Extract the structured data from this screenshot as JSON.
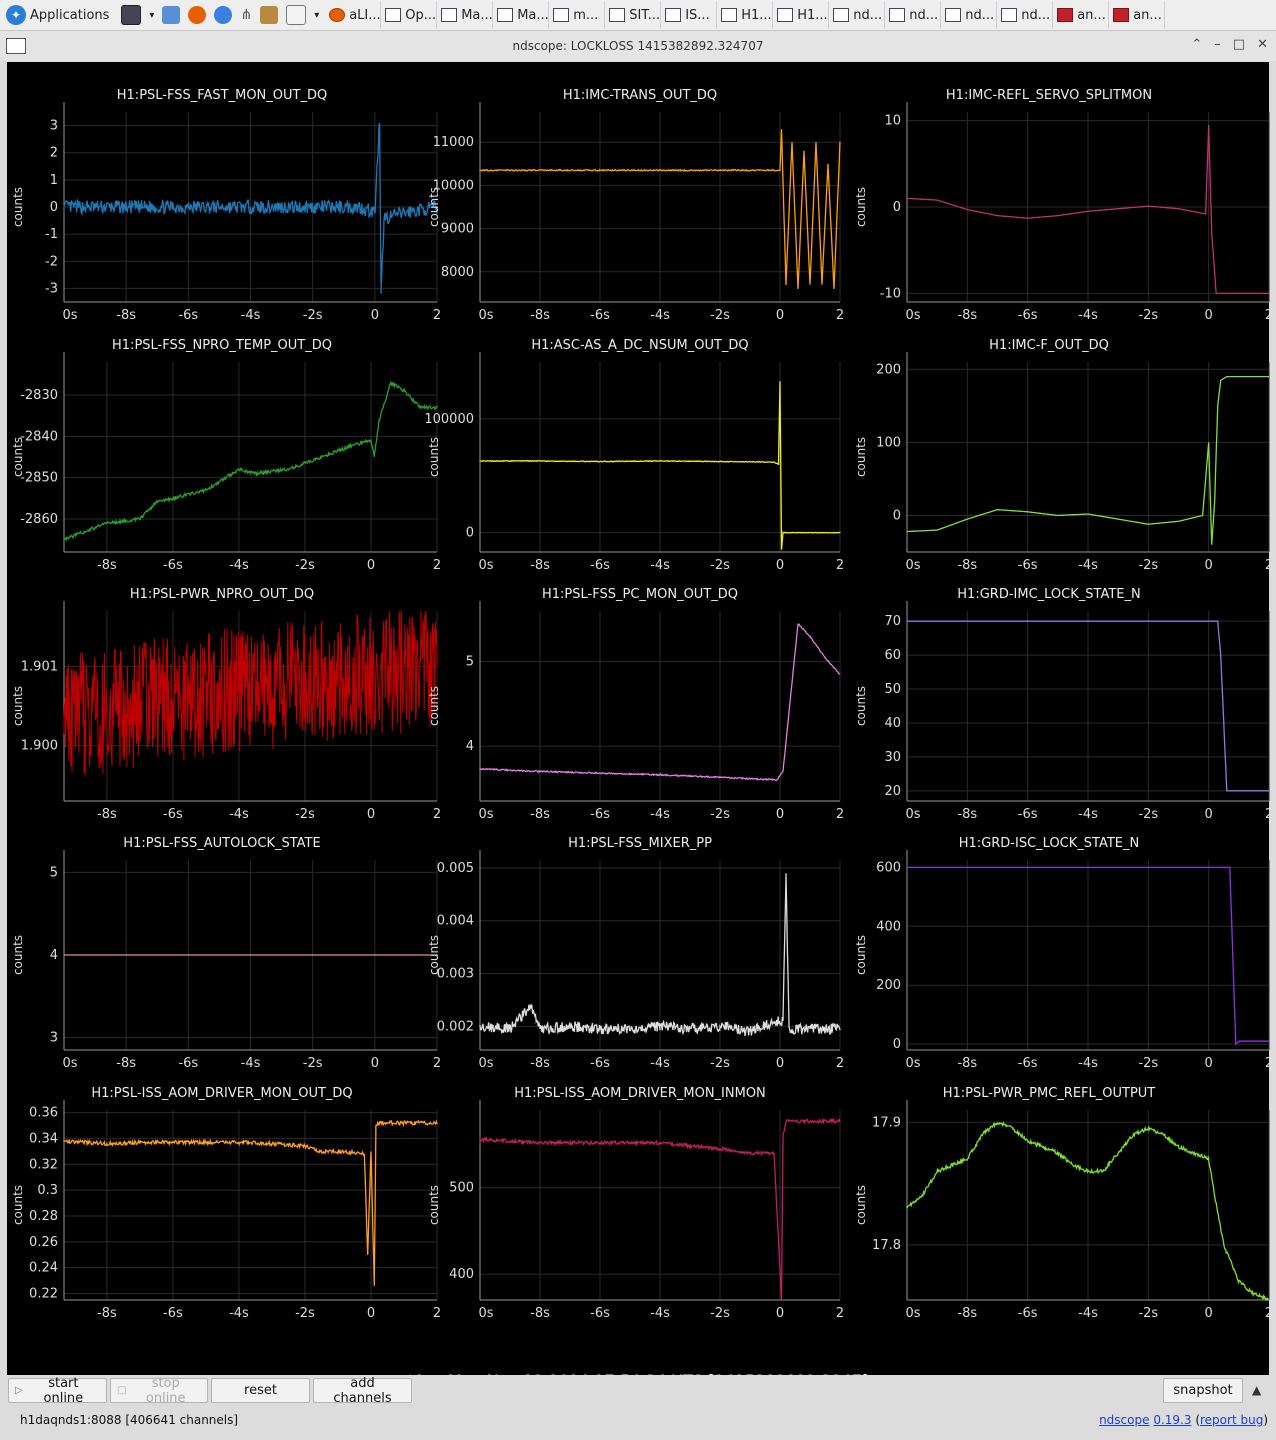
{
  "taskbar": {
    "apps_label": "Applications",
    "tasks": [
      {
        "label": "aLI...",
        "icon": "firefox-icon"
      },
      {
        "label": "Op...",
        "icon": "editor-icon"
      },
      {
        "label": "Ma...",
        "icon": "window-icon"
      },
      {
        "label": "Ma...",
        "icon": "window-icon"
      },
      {
        "label": "m...",
        "icon": "window-icon"
      },
      {
        "label": "SIT...",
        "icon": "monitor-icon"
      },
      {
        "label": "IS...",
        "icon": "monitor-icon"
      },
      {
        "label": "H1...",
        "icon": "monitor-icon"
      },
      {
        "label": "H1...",
        "icon": "monitor-icon"
      },
      {
        "label": "nd...",
        "icon": "window-icon"
      },
      {
        "label": "nd...",
        "icon": "window-icon"
      },
      {
        "label": "nd...",
        "icon": "window-icon"
      },
      {
        "label": "nd...",
        "icon": "window-icon"
      },
      {
        "label": "an...",
        "icon": "terminal-icon"
      },
      {
        "label": "an...",
        "icon": "terminal-icon"
      }
    ]
  },
  "window": {
    "title": "ndscope: LOCKLOSS 1415382892.324707"
  },
  "t0_label": "t0 = Mon Nov 11 2024 17:54:34 UTC [1415382892.3247]",
  "buttons": {
    "start_online": "start online",
    "stop_online": "stop online",
    "reset": "reset",
    "add_channels": "add channels",
    "snapshot": "snapshot"
  },
  "status": {
    "server": "h1daqnds1:8088  [406641 channels]",
    "app_name": "ndscope",
    "version": "0.19.3",
    "report_bug": "report bug"
  },
  "chart_data": [
    {
      "type": "line",
      "title": "H1:PSL-FSS_FAST_MON_OUT_DQ",
      "ylabel": "counts",
      "color": "#1f77b4",
      "xlim": [
        -10,
        2
      ],
      "ylim": [
        -3.5,
        3.5
      ],
      "yticks": [
        3,
        2,
        1,
        0,
        -1,
        -2,
        -3
      ],
      "xticks": [
        "0s",
        "-8s",
        "-6s",
        "-4s",
        "-2s",
        "0",
        "2"
      ],
      "x": [
        -10,
        -8,
        -6,
        -4,
        -2,
        -0.5,
        0,
        0.15,
        0.2,
        0.3,
        1,
        2
      ],
      "y": [
        0,
        0,
        0,
        0,
        0,
        0,
        -0.2,
        3.1,
        -3.2,
        -0.4,
        -0.2,
        0
      ],
      "noise": 0.25
    },
    {
      "type": "line",
      "title": "H1:IMC-TRANS_OUT_DQ",
      "ylabel": "counts",
      "color": "#ff9f10",
      "xlim": [
        -10,
        2
      ],
      "ylim": [
        7300,
        11700
      ],
      "yticks": [
        11000,
        10000,
        9000,
        8000
      ],
      "xticks": [
        "0s",
        "-8s",
        "-6s",
        "-4s",
        "-2s",
        "0",
        "2"
      ],
      "x": [
        -10,
        -6,
        -2,
        0,
        0.05,
        0.2,
        0.4,
        0.6,
        0.8,
        1.0,
        1.2,
        1.4,
        1.6,
        1.8,
        2
      ],
      "y": [
        10350,
        10350,
        10350,
        10350,
        11300,
        7700,
        11000,
        7600,
        10800,
        7700,
        11000,
        7700,
        10500,
        7600,
        11000
      ],
      "noise": 15
    },
    {
      "type": "line",
      "title": "H1:IMC-REFL_SERVO_SPLITMON",
      "ylabel": "counts",
      "color": "#c0306a",
      "xlim": [
        -10,
        2
      ],
      "ylim": [
        -11,
        11
      ],
      "yticks": [
        10,
        0,
        -10
      ],
      "xticks": [
        "0s",
        "-8s",
        "-6s",
        "-4s",
        "-2s",
        "0",
        "2"
      ],
      "x": [
        -10,
        -9,
        -8,
        -7,
        -6,
        -5,
        -4,
        -3,
        -2,
        -1,
        -0.1,
        0,
        0.1,
        0.25,
        0.3,
        2
      ],
      "y": [
        1,
        0.8,
        -0.3,
        -1,
        -1.3,
        -1,
        -0.5,
        -0.2,
        0.1,
        -0.2,
        -0.8,
        9.5,
        -3,
        -10,
        -10,
        -10
      ],
      "noise": 0
    },
    {
      "type": "line",
      "title": "H1:PSL-FSS_NPRO_TEMP_OUT_DQ",
      "ylabel": "counts",
      "color": "#2ca02c",
      "xlim": [
        -9.3,
        2
      ],
      "ylim": [
        -2868,
        -2822
      ],
      "yticks": [
        -2830,
        -2840,
        -2850,
        -2860
      ],
      "xticks": [
        "-8s",
        "-6s",
        "-4s",
        "-2s",
        "0",
        "2"
      ],
      "x": [
        -9.3,
        -8,
        -7,
        -6.5,
        -5,
        -4,
        -3.5,
        -2.5,
        -1.5,
        -0.5,
        0,
        0.1,
        0.25,
        0.6,
        1,
        1.5,
        2
      ],
      "y": [
        -2865,
        -2861,
        -2860,
        -2856,
        -2853,
        -2848,
        -2849,
        -2848,
        -2845,
        -2842,
        -2841,
        -2845,
        -2836,
        -2827,
        -2829,
        -2833,
        -2833
      ],
      "noise": 0.4
    },
    {
      "type": "line",
      "title": "H1:ASC-AS_A_DC_NSUM_OUT_DQ",
      "ylabel": "counts",
      "color": "#eeee20",
      "xlim": [
        -10,
        2
      ],
      "ylim": [
        -17000,
        150000
      ],
      "yticks": [
        100000,
        0
      ],
      "xticks": [
        "0s",
        "-8s",
        "-6s",
        "-4s",
        "-2s",
        "0",
        "2"
      ],
      "x": [
        -10,
        -8,
        -6,
        -4,
        -2,
        -0.2,
        -0.05,
        0,
        0.05,
        0.1,
        0.15,
        2
      ],
      "y": [
        63000,
        63000,
        62500,
        63000,
        62500,
        62000,
        60000,
        133000,
        -15000,
        0,
        0,
        0
      ],
      "noise": 300
    },
    {
      "type": "line",
      "title": "H1:IMC-F_OUT_DQ",
      "ylabel": "counts",
      "color": "#80e040",
      "xlim": [
        -10,
        2
      ],
      "ylim": [
        -50,
        210
      ],
      "yticks": [
        200,
        100,
        0
      ],
      "xticks": [
        "0s",
        "-8s",
        "-6s",
        "-4s",
        "-2s",
        "0",
        "2"
      ],
      "x": [
        -10,
        -9,
        -8,
        -7,
        -6,
        -5,
        -4,
        -3,
        -2,
        -1,
        -0.2,
        0,
        0.1,
        0.2,
        0.3,
        0.4,
        0.6,
        0.8,
        1.2,
        2
      ],
      "y": [
        -22,
        -20,
        -5,
        8,
        5,
        0,
        2,
        -5,
        -12,
        -8,
        0,
        100,
        -40,
        20,
        150,
        185,
        190,
        190,
        190,
        190
      ],
      "noise": 0
    },
    {
      "type": "line",
      "title": "H1:PSL-PWR_NPRO_OUT_DQ",
      "ylabel": "counts",
      "color": "#c00000",
      "xlim": [
        -9.3,
        2
      ],
      "ylim": [
        1.8993,
        1.9017
      ],
      "yticks": [
        1.901,
        1.9
      ],
      "ytick_labels": [
        "1.901",
        "1.900"
      ],
      "xticks": [
        "-8s",
        "-6s",
        "-4s",
        "-2s",
        "0",
        "2"
      ],
      "x": [
        -9.3,
        -8,
        -6,
        -4,
        -2,
        0,
        2
      ],
      "y": [
        1.90035,
        1.90045,
        1.9006,
        1.9007,
        1.9008,
        1.9009,
        1.901
      ],
      "noise": 0.0008,
      "filled": true
    },
    {
      "type": "line",
      "title": "H1:PSL-FSS_PC_MON_OUT_DQ",
      "ylabel": "counts",
      "color": "#e080e0",
      "xlim": [
        -10,
        2
      ],
      "ylim": [
        3.35,
        5.6
      ],
      "yticks": [
        5,
        4
      ],
      "xticks": [
        "0s",
        "-8s",
        "-6s",
        "-4s",
        "-2s",
        "0",
        "2"
      ],
      "x": [
        -10,
        -8,
        -6,
        -4,
        -2,
        -0.1,
        0.1,
        0.6,
        1,
        1.5,
        2
      ],
      "y": [
        3.73,
        3.7,
        3.68,
        3.66,
        3.63,
        3.6,
        3.7,
        5.45,
        5.3,
        5.05,
        4.85
      ],
      "noise": 0.008
    },
    {
      "type": "line",
      "title": "H1:GRD-IMC_LOCK_STATE_N",
      "ylabel": "counts",
      "color": "#8080e0",
      "xlim": [
        -10,
        2
      ],
      "ylim": [
        17,
        73
      ],
      "yticks": [
        70,
        60,
        50,
        40,
        30,
        20
      ],
      "xticks": [
        "0s",
        "-8s",
        "-6s",
        "-4s",
        "-2s",
        "0",
        "2"
      ],
      "x": [
        -10,
        0.3,
        0.4,
        0.5,
        0.6,
        2
      ],
      "y": [
        70,
        70,
        60,
        40,
        20,
        20
      ],
      "noise": 0
    },
    {
      "type": "line",
      "title": "H1:PSL-FSS_AUTOLOCK_STATE",
      "ylabel": "counts",
      "color": "#e09090",
      "xlim": [
        -10,
        2
      ],
      "ylim": [
        2.85,
        5.15
      ],
      "yticks": [
        5,
        4,
        3
      ],
      "xticks": [
        "0s",
        "-8s",
        "-6s",
        "-4s",
        "-2s",
        "0",
        "2"
      ],
      "x": [
        -10,
        2
      ],
      "y": [
        4,
        4
      ],
      "noise": 0
    },
    {
      "type": "line",
      "title": "H1:PSL-FSS_MIXER_PP",
      "ylabel": "counts",
      "color": "#dddddd",
      "xlim": [
        -10,
        2
      ],
      "ylim": [
        0.00155,
        0.00515
      ],
      "yticks": [
        0.005,
        0.004,
        0.003,
        0.002
      ],
      "xticks": [
        "0s",
        "-8s",
        "-6s",
        "-4s",
        "-2s",
        "0",
        "2"
      ],
      "x": [
        -10,
        -9,
        -8.3,
        -8,
        -7,
        -6,
        -5,
        -4,
        -3,
        -2,
        -1,
        -0.2,
        0.1,
        0.2,
        0.3,
        0.4,
        1,
        2
      ],
      "y": [
        0.002,
        0.00195,
        0.0024,
        0.00195,
        0.002,
        0.00195,
        0.00195,
        0.002,
        0.00195,
        0.002,
        0.0019,
        0.0021,
        0.0021,
        0.0049,
        0.002,
        0.00195,
        0.00195,
        0.00195
      ],
      "noise": 0.0001
    },
    {
      "type": "line",
      "title": "H1:GRD-ISC_LOCK_STATE_N",
      "ylabel": "counts",
      "color": "#9030e0",
      "xlim": [
        -10,
        2
      ],
      "ylim": [
        -20,
        625
      ],
      "yticks": [
        600,
        400,
        200,
        0
      ],
      "xticks": [
        "0s",
        "-8s",
        "-6s",
        "-4s",
        "-2s",
        "0",
        "2"
      ],
      "x": [
        -10,
        0.7,
        0.9,
        1,
        2
      ],
      "y": [
        600,
        600,
        0,
        10,
        10
      ],
      "noise": 0
    },
    {
      "type": "line",
      "title": "H1:PSL-ISS_AOM_DRIVER_MON_OUT_DQ",
      "ylabel": "counts",
      "color": "#ffa020",
      "xlim": [
        -9.3,
        2
      ],
      "ylim": [
        0.215,
        0.362
      ],
      "yticks": [
        0.36,
        0.34,
        0.32,
        0.3,
        0.28,
        0.26,
        0.24,
        0.22
      ],
      "xticks": [
        "-8s",
        "-6s",
        "-4s",
        "-2s",
        "0",
        "2"
      ],
      "x": [
        -9.3,
        -8,
        -7,
        -6,
        -5,
        -4,
        -3,
        -2,
        -1.5,
        -1,
        -0.5,
        -0.2,
        -0.1,
        0,
        0.1,
        0.15,
        0.2,
        0.25,
        2
      ],
      "y": [
        0.338,
        0.336,
        0.337,
        0.337,
        0.337,
        0.337,
        0.336,
        0.334,
        0.33,
        0.33,
        0.329,
        0.328,
        0.25,
        0.33,
        0.226,
        0.35,
        0.352,
        0.352,
        0.352
      ],
      "noise": 0.0015
    },
    {
      "type": "line",
      "title": "H1:PSL-ISS_AOM_DRIVER_MON_INMON",
      "ylabel": "counts",
      "color": "#c02060",
      "xlim": [
        -10,
        2
      ],
      "ylim": [
        370,
        590
      ],
      "yticks": [
        500,
        400
      ],
      "xticks": [
        "0s",
        "-8s",
        "-6s",
        "-4s",
        "-2s",
        "0",
        "2"
      ],
      "x": [
        -10,
        -8,
        -6,
        -4,
        -2,
        -1,
        -0.2,
        0.05,
        0.1,
        0.2,
        0.3,
        2
      ],
      "y": [
        556,
        552,
        552,
        552,
        545,
        540,
        540,
        370,
        560,
        577,
        577,
        577
      ],
      "noise": 2
    },
    {
      "type": "line",
      "title": "H1:PSL-PWR_PMC_REFL_OUTPUT",
      "ylabel": "counts",
      "color": "#80e030",
      "xlim": [
        -10,
        2
      ],
      "ylim": [
        17.755,
        17.91
      ],
      "yticks": [
        17.9,
        17.8
      ],
      "xticks": [
        "0s",
        "-8s",
        "-6s",
        "-4s",
        "-2s",
        "0",
        "2"
      ],
      "x": [
        -10,
        -9.5,
        -9,
        -8,
        -7.5,
        -7,
        -6.5,
        -6,
        -5.5,
        -5,
        -4.5,
        -4,
        -3.5,
        -3,
        -2.5,
        -2,
        -1.5,
        -1,
        -0.5,
        0,
        0.2,
        0.5,
        1,
        1.5,
        2
      ],
      "y": [
        17.83,
        17.84,
        17.86,
        17.87,
        17.89,
        17.9,
        17.895,
        17.885,
        17.88,
        17.875,
        17.865,
        17.86,
        17.86,
        17.875,
        17.89,
        17.895,
        17.89,
        17.88,
        17.875,
        17.87,
        17.84,
        17.8,
        17.77,
        17.76,
        17.755
      ],
      "noise": 0.0015
    }
  ]
}
